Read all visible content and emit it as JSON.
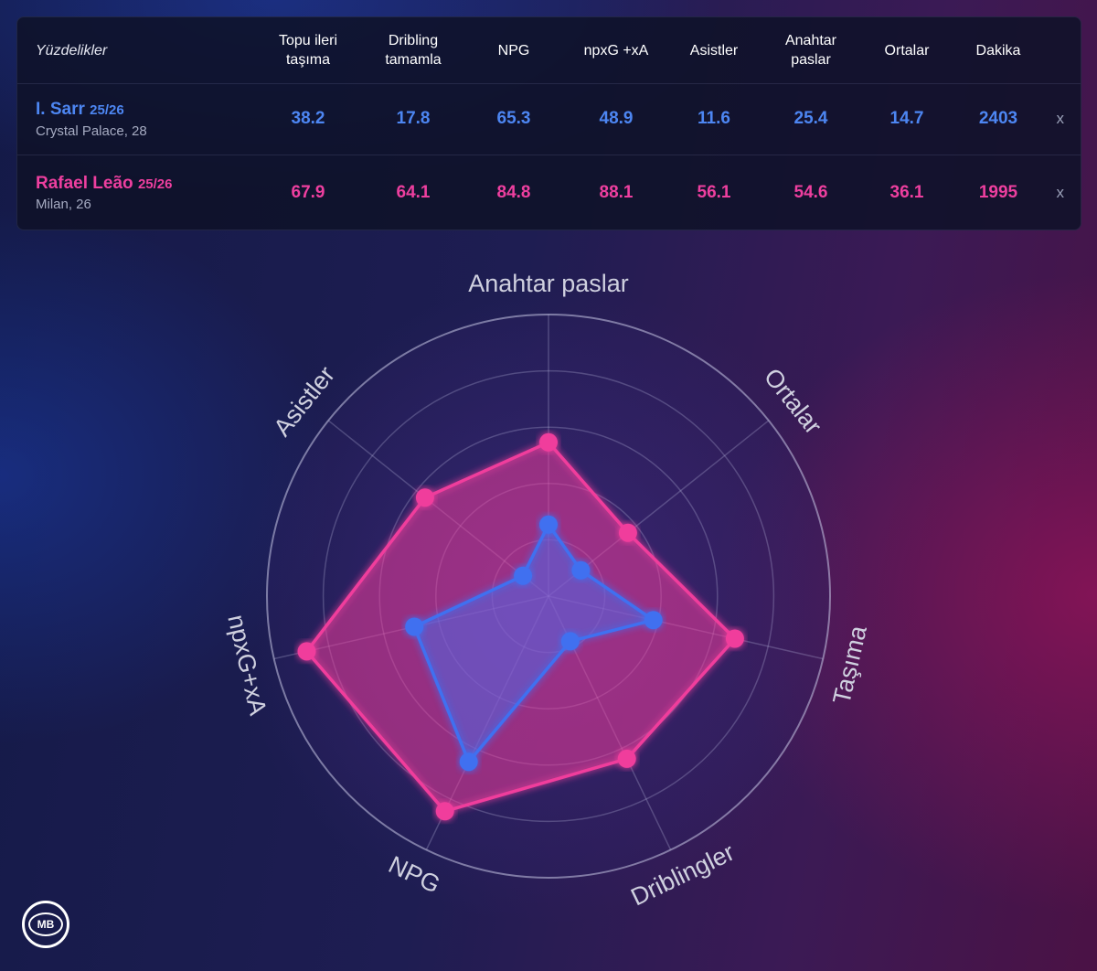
{
  "table": {
    "title": "Yüzdelikler",
    "columns": [
      "Topu ileri\ntaşıma",
      "Dribling\ntamamla",
      "NPG",
      "npxG +xA",
      "Asistler",
      "Anahtar\npaslar",
      "Ortalar",
      "Dakika"
    ],
    "close_label": "x",
    "players": [
      {
        "name": "I. Sarr",
        "season": "25/26",
        "club": "Crystal Palace, 28",
        "color": "#4d86f2",
        "values": [
          "38.2",
          "17.8",
          "65.3",
          "48.9",
          "11.6",
          "25.4",
          "14.7",
          "2403"
        ]
      },
      {
        "name": "Rafael Leão",
        "season": "25/26",
        "club": "Milan, 26",
        "color": "#ee3f9f",
        "values": [
          "67.9",
          "64.1",
          "84.8",
          "88.1",
          "56.1",
          "54.6",
          "36.1",
          "1995"
        ]
      }
    ]
  },
  "chart_data": {
    "type": "radar",
    "axes": [
      "Anahtar paslar",
      "Ortalar",
      "Taşıma",
      "Driblingler",
      "NPG",
      "npxG+xA",
      "Asistler"
    ],
    "range": [
      0,
      100
    ],
    "rings": 5,
    "grid": true,
    "series": [
      {
        "name": "I. Sarr",
        "color": "#3f6ff0",
        "values": [
          25.4,
          14.7,
          38.2,
          17.8,
          65.3,
          48.9,
          11.6
        ]
      },
      {
        "name": "Rafael Leão",
        "color": "#f03c9c",
        "values": [
          54.6,
          36.1,
          67.9,
          64.1,
          84.8,
          88.1,
          56.1
        ]
      }
    ]
  },
  "logo": {
    "text": "MB"
  }
}
